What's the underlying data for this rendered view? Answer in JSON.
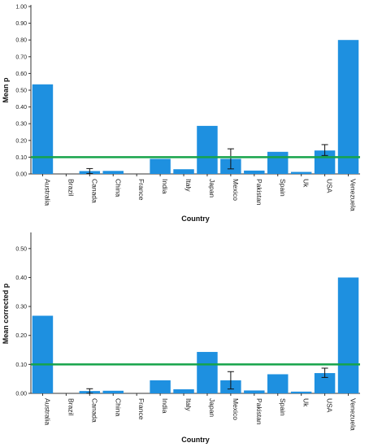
{
  "chart_data": [
    {
      "type": "bar",
      "xlabel": "Country",
      "ylabel": "Mean p",
      "ylim": [
        0,
        1.0
      ],
      "yticks": [
        "0.00",
        "0.10",
        "0.20",
        "0.30",
        "0.40",
        "0.50",
        "0.60",
        "0.70",
        "0.80",
        "0.90",
        "1.00"
      ],
      "categories": [
        "Australia",
        "Brazil",
        "Canada",
        "China",
        "France",
        "India",
        "Italy",
        "Japan",
        "Mexico",
        "Pakistan",
        "Spain",
        "Uk",
        "USA",
        "Venezuela"
      ],
      "values": [
        0.535,
        0.0,
        0.017,
        0.018,
        0.0,
        0.09,
        0.028,
        0.287,
        0.09,
        0.02,
        0.132,
        0.012,
        0.14,
        0.8
      ],
      "error_bars": [
        {
          "category": "Canada",
          "low": 0.002,
          "high": 0.032
        },
        {
          "category": "Mexico",
          "low": 0.03,
          "high": 0.15
        },
        {
          "category": "USA",
          "low": 0.11,
          "high": 0.175
        }
      ],
      "reference_line": 0.1,
      "bar_color": "#1e90e0",
      "reference_color": "#16a34a"
    },
    {
      "type": "bar",
      "xlabel": "Country",
      "ylabel": "Mean corrected p",
      "ylim": [
        0,
        0.55
      ],
      "yticks": [
        "0.00",
        "0.10",
        "0.20",
        "0.30",
        "0.40",
        "0.50"
      ],
      "categories": [
        "Australia",
        "Brazil",
        "Canada",
        "China",
        "France",
        "India",
        "Italy",
        "Japan",
        "Mexico",
        "Pakistan",
        "Spain",
        "Uk",
        "USA",
        "Venezuela"
      ],
      "values": [
        0.268,
        0.0,
        0.008,
        0.009,
        0.0,
        0.045,
        0.014,
        0.143,
        0.045,
        0.01,
        0.066,
        0.006,
        0.07,
        0.4
      ],
      "error_bars": [
        {
          "category": "Canada",
          "low": 0.0,
          "high": 0.016
        },
        {
          "category": "Mexico",
          "low": 0.015,
          "high": 0.075
        },
        {
          "category": "USA",
          "low": 0.055,
          "high": 0.087
        }
      ],
      "reference_line": 0.1,
      "bar_color": "#1e90e0",
      "reference_color": "#16a34a"
    }
  ]
}
